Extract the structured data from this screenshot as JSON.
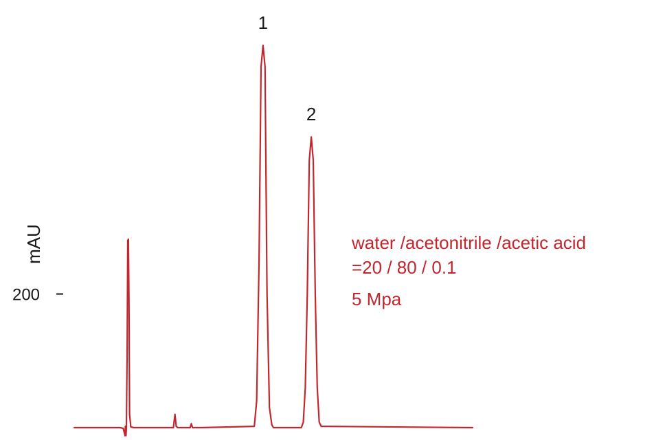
{
  "chart_data": {
    "type": "line",
    "title": "",
    "xlabel": "",
    "ylabel": "mAU",
    "y_ticks": [
      {
        "value": 200,
        "label": "200"
      }
    ],
    "ylim": [
      -20,
      630
    ],
    "xlim": [
      0,
      100
    ],
    "grid": false,
    "legend": "none",
    "series": [
      {
        "color": "#c1272d",
        "x": [
          0,
          11.5,
          12.3,
          12.6,
          12.75,
          12.85,
          13.0,
          13.1,
          13.3,
          13.45,
          13.6,
          13.75,
          13.9,
          14.2,
          15,
          24.9,
          25.3,
          25.6,
          26,
          29.1,
          29.4,
          29.7,
          32,
          45.2,
          45.8,
          46.4,
          46.9,
          47.4,
          47.9,
          48.4,
          49,
          49.6,
          50,
          57,
          57.5,
          58,
          58.5,
          59,
          59.5,
          60,
          60.5,
          61,
          61.5,
          62,
          100
        ],
        "y": [
          0,
          0,
          -1,
          -8,
          -12,
          2,
          -12,
          0,
          120,
          280,
          282,
          180,
          20,
          1,
          0,
          0,
          20,
          2,
          0,
          0,
          6,
          0,
          0,
          2,
          40,
          250,
          540,
          572,
          540,
          200,
          30,
          4,
          0,
          0,
          8,
          60,
          200,
          400,
          435,
          400,
          200,
          60,
          8,
          2,
          0
        ]
      }
    ],
    "annotations": [
      {
        "text": "1",
        "x": 47.4
      },
      {
        "text": "2",
        "x": 59.5
      }
    ],
    "conditions": [
      "water /acetonitrile /acetic acid",
      "=20 / 80 / 0.1",
      "5 Mpa"
    ]
  }
}
